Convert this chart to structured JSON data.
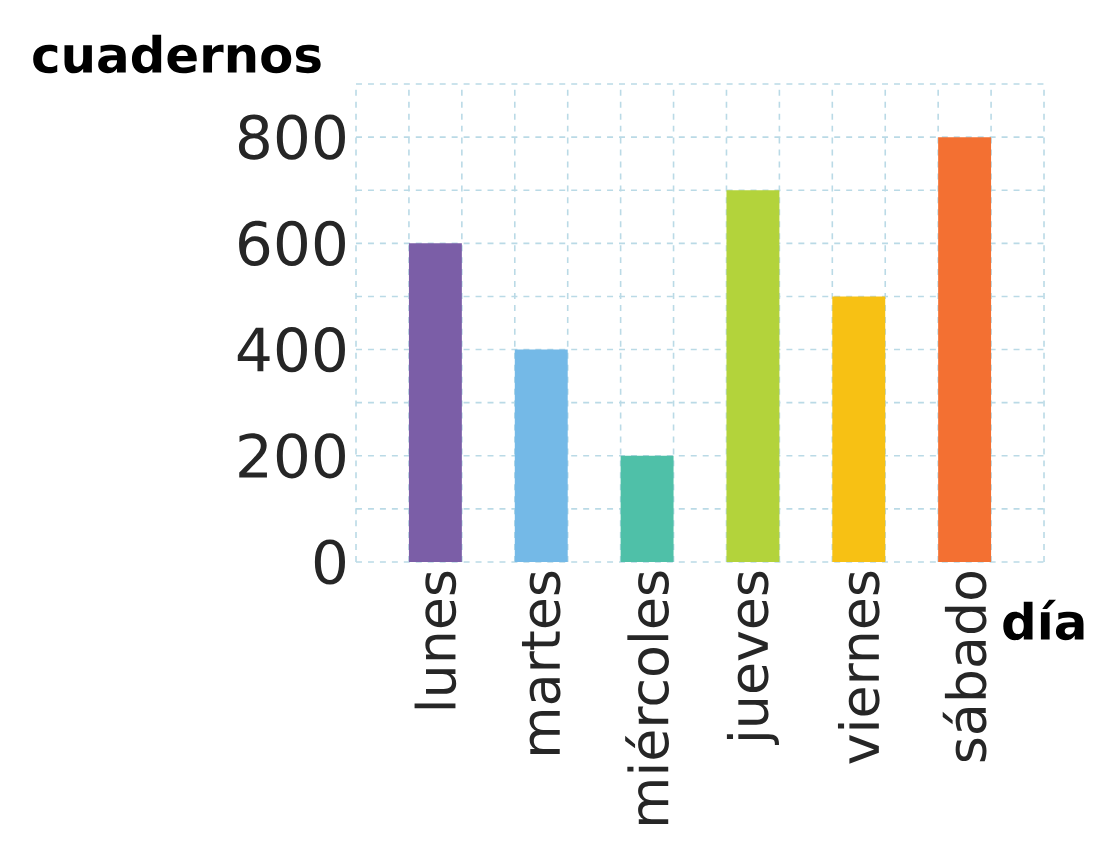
{
  "chart_data": {
    "type": "bar",
    "xlabel": "día",
    "ylabel": "cuadernos",
    "categories": [
      "lunes",
      "martes",
      "miércoles",
      "jueves",
      "viernes",
      "sábado"
    ],
    "values": [
      600,
      400,
      200,
      700,
      500,
      800
    ],
    "colors": [
      "#7b5ea7",
      "#74b9e7",
      "#4fc0a8",
      "#b3d33b",
      "#f7c114",
      "#f37032"
    ],
    "ylim": [
      0,
      900
    ],
    "yticks": [
      0,
      {
        "value": 100,
        "label": null
      },
      200,
      {
        "value": 300,
        "label": null
      },
      400,
      {
        "value": 500,
        "label": null
      },
      600,
      {
        "value": 700,
        "label": null
      },
      800,
      {
        "value": 900,
        "label": null
      }
    ],
    "grid": true
  }
}
